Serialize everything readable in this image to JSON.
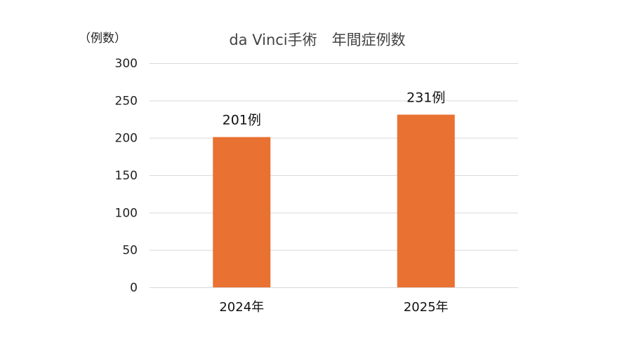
{
  "chart_data": {
    "type": "bar",
    "title": "da Vinci手術　年間症例数",
    "ylabel": "（例数）",
    "xlabel": "",
    "categories": [
      "2024年",
      "2025年"
    ],
    "values": [
      201,
      231
    ],
    "data_labels": [
      "201例",
      "231例"
    ],
    "ylim": [
      0,
      300
    ],
    "yticks": [
      0,
      50,
      100,
      150,
      200,
      250,
      300
    ],
    "bar_color": "#E97132",
    "grid": true,
    "legend": "none"
  }
}
